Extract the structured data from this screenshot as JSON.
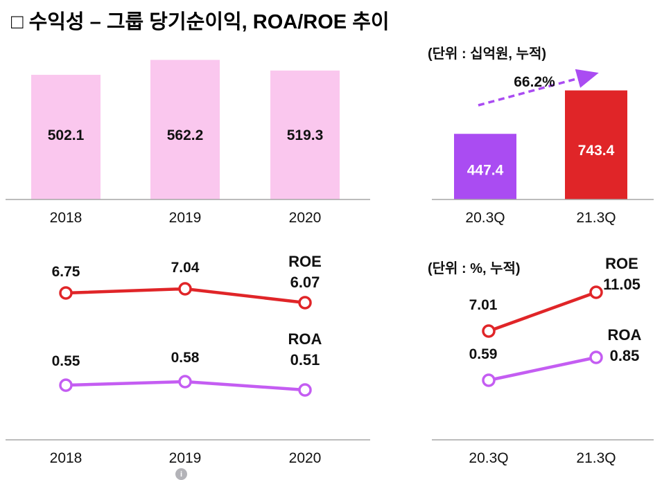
{
  "page": {
    "title": "□ 수익성 – 그룹 당기순이익, ROA/ROE 추이"
  },
  "footer": {
    "info_icon_glyph": "i"
  },
  "colors": {
    "pink_bar": "#fac7ee",
    "purple_bar": "#aa4cf2",
    "red": "#e02528",
    "roa_purple": "#c45df2",
    "axis": "#a6a6a6"
  },
  "chart_data": [
    {
      "id": "group-net-income-annual",
      "type": "bar",
      "categories": [
        "2018",
        "2019",
        "2020"
      ],
      "values": [
        502.1,
        562.2,
        519.3
      ],
      "bar_color": "#fac7ee",
      "ylim": [
        0,
        650
      ],
      "grid": false
    },
    {
      "id": "group-net-income-quarterly",
      "type": "bar",
      "unit_label": "(단위 : 십억원, 누적)",
      "categories": [
        "20.3Q",
        "21.3Q"
      ],
      "values": [
        447.4,
        743.4
      ],
      "bar_colors": [
        "#aa4cf2",
        "#e02528"
      ],
      "growth_label": "66.2%",
      "arrow_color": "#aa4cf2",
      "ylim": [
        0,
        1100
      ],
      "grid": false
    },
    {
      "id": "roa-roe-annual",
      "type": "line",
      "categories": [
        "2018",
        "2019",
        "2020"
      ],
      "series": [
        {
          "name": "ROE",
          "values": [
            6.75,
            7.04,
            6.07
          ],
          "color": "#e02528"
        },
        {
          "name": "ROA",
          "values": [
            0.55,
            0.58,
            0.51
          ],
          "color": "#c45df2"
        }
      ],
      "grid": false,
      "legend": "end-of-line labels"
    },
    {
      "id": "roa-roe-quarterly",
      "type": "line",
      "unit_label": "(단위 : %, 누적)",
      "categories": [
        "20.3Q",
        "21.3Q"
      ],
      "series": [
        {
          "name": "ROE",
          "values": [
            7.01,
            11.05
          ],
          "color": "#e02528"
        },
        {
          "name": "ROA",
          "values": [
            0.59,
            0.85
          ],
          "color": "#c45df2"
        }
      ],
      "grid": false,
      "legend": "end-of-line labels"
    }
  ]
}
